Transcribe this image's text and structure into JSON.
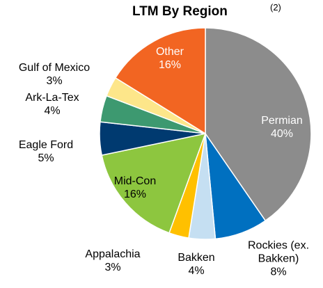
{
  "chart_data": {
    "type": "pie",
    "title": "LTM By Region",
    "title_note": "(2)",
    "categories": [
      "Permian",
      "Rockies (ex. Bakken)",
      "Bakken",
      "Appalachia",
      "Mid-Con",
      "Eagle Ford",
      "Ark-La-Tex",
      "Gulf of Mexico",
      "Other"
    ],
    "values": [
      40,
      8,
      4,
      3,
      16,
      5,
      4,
      3,
      16
    ],
    "value_labels": [
      "40%",
      "8%",
      "4%",
      "3%",
      "16%",
      "5%",
      "4%",
      "3%",
      "16%"
    ],
    "colors": [
      "#8c8c8c",
      "#0070c0",
      "#c5dff2",
      "#ffc000",
      "#8dc63f",
      "#003a70",
      "#3d9970",
      "#fde68a",
      "#f26522"
    ]
  }
}
